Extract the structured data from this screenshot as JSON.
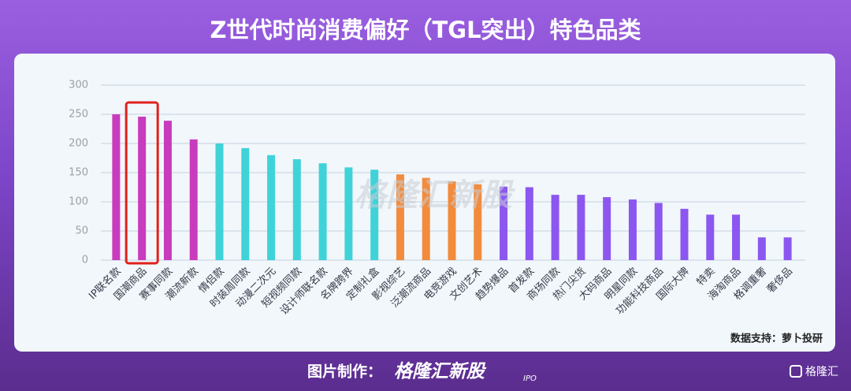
{
  "chart_data": {
    "type": "bar",
    "title": "Z世代时尚消费偏好（TGL突出）特色品类",
    "categories": [
      "IP联名款",
      "国潮商品",
      "赛事同款",
      "潮流新款",
      "情侣款",
      "时装周同款",
      "动漫二次元",
      "短视频同款",
      "设计师联名款",
      "名牌跨界",
      "定制礼盒",
      "影视综艺",
      "泛潮流商品",
      "电竞游戏",
      "文创艺术",
      "趋势爆品",
      "首发款",
      "商场同款",
      "热门尖货",
      "大码商品",
      "明星同款",
      "功能科技商品",
      "国际大牌",
      "特卖",
      "海淘商品",
      "格调重奢",
      "奢侈品"
    ],
    "values": [
      250,
      246,
      239,
      207,
      200,
      192,
      180,
      173,
      166,
      159,
      155,
      147,
      141,
      135,
      130,
      126,
      125,
      112,
      112,
      108,
      104,
      98,
      88,
      78,
      78,
      39,
      39
    ],
    "colors": [
      "#c93bbd",
      "#c93bbd",
      "#c93bbd",
      "#c93bbd",
      "#3fd3d8",
      "#3fd3d8",
      "#3fd3d8",
      "#3fd3d8",
      "#3fd3d8",
      "#3fd3d8",
      "#3fd3d8",
      "#f28b3c",
      "#f28b3c",
      "#f28b3c",
      "#f28b3c",
      "#8c57f0",
      "#8c57f0",
      "#8c57f0",
      "#8c57f0",
      "#8c57f0",
      "#8c57f0",
      "#8c57f0",
      "#8c57f0",
      "#8c57f0",
      "#8c57f0",
      "#8c57f0",
      "#8c57f0"
    ],
    "ylim": [
      0,
      300
    ],
    "yticks": [
      0,
      50,
      100,
      150,
      200,
      250,
      300
    ],
    "grid": true
  },
  "source": "数据支持：萝卜投研",
  "watermark": "格隆汇新股",
  "footer": {
    "label": "图片制作：",
    "brand": "格隆汇新股",
    "ipo": "IPO",
    "logo": "格隆汇"
  }
}
